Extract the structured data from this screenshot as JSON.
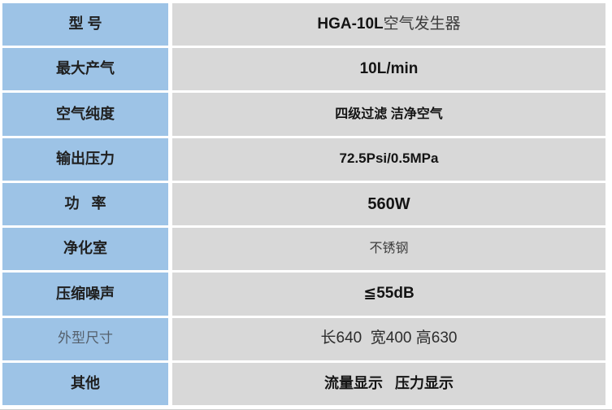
{
  "colors": {
    "label_bg": "#9DC3E6",
    "value_bg": "#D8D8D8",
    "separator": "#FFFFFF",
    "text_dark": "#141414",
    "text_muted": "#55606c"
  },
  "table": {
    "rows": [
      {
        "label": "型 号",
        "value_bold": "HGA-10L",
        "value_rest": "空气发生器"
      },
      {
        "label": "最大产气",
        "value": "10L/min"
      },
      {
        "label": "空气纯度",
        "value": "四级过滤 洁净空气"
      },
      {
        "label": "输出压力",
        "value": "72.5Psi/0.5MPa"
      },
      {
        "label": "功   率",
        "value": "560W"
      },
      {
        "label": "净化室",
        "value": "不锈钢"
      },
      {
        "label": "压缩噪声",
        "value": "≦55dB"
      },
      {
        "label": "外型尺寸",
        "value": "长640  宽400 高630"
      },
      {
        "label": "其他",
        "value": "流量显示   压力显示"
      }
    ]
  }
}
